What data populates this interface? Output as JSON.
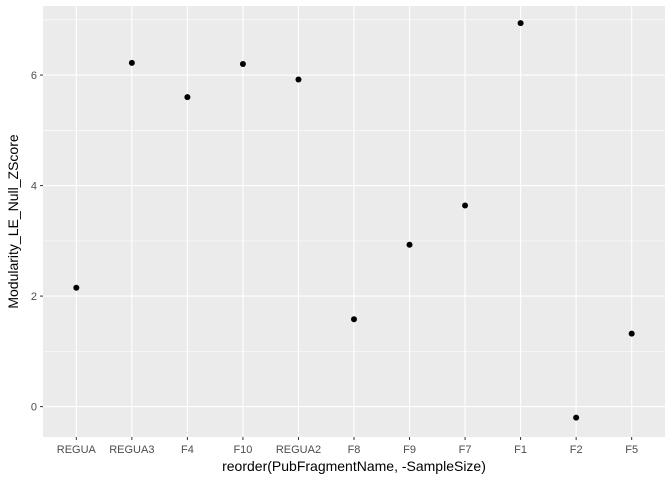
{
  "chart_data": {
    "type": "scatter",
    "categories": [
      "REGUA",
      "REGUA3",
      "F4",
      "F10",
      "REGUA2",
      "F8",
      "F9",
      "F7",
      "F1",
      "F2",
      "F5"
    ],
    "values": [
      2.15,
      6.22,
      5.6,
      6.2,
      5.92,
      1.58,
      2.93,
      3.64,
      6.94,
      -0.2,
      1.32
    ],
    "title": "",
    "xlabel": "reorder(PubFragmentName, -SampleSize)",
    "ylabel": "Modularity_LE_Null_ZScore",
    "ylim": [
      -0.55,
      7.25
    ],
    "yticks": [
      0,
      2,
      4,
      6
    ],
    "grid": true,
    "colors": {
      "panel": "#ebebeb",
      "grid_major": "#ffffff",
      "point": "#000000",
      "tick_text": "#4d4d4d",
      "axis_title": "#000000"
    }
  }
}
